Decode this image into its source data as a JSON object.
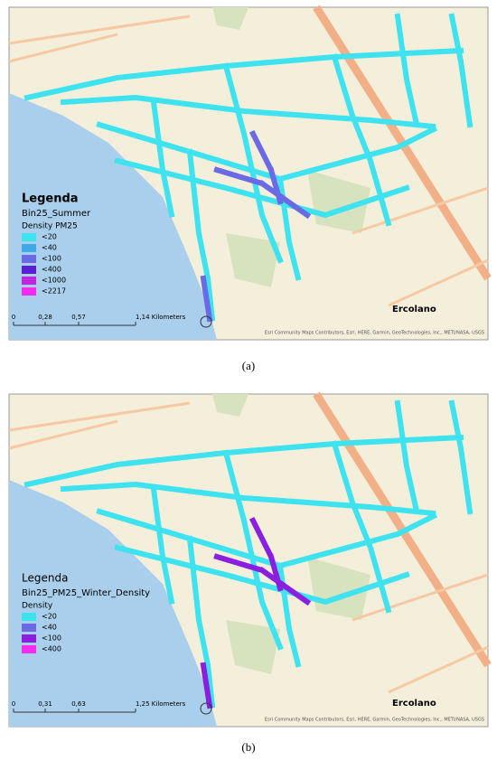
{
  "panels": [
    {
      "legend": {
        "title": "Legenda",
        "layer": "Bin25_Summer",
        "field": "Density PM25",
        "classes": [
          {
            "label": "<20",
            "color": "#3fe3ef"
          },
          {
            "label": "<40",
            "color": "#3fa9ea"
          },
          {
            "label": "<100",
            "color": "#6a6ae4"
          },
          {
            "label": "<400",
            "color": "#5a1fd0"
          },
          {
            "label": "<1000",
            "color": "#c026e0"
          },
          {
            "label": "<2217",
            "color": "#f42cf0"
          }
        ]
      },
      "scale": [
        "0",
        "0,28",
        "0,57",
        "1,14 Kilometers"
      ],
      "place": "Ercolano",
      "attribution": "Esri Community Maps Contributors, Esri, HERE, Garmin, GeoTechnologies, Inc., METI/NASA, USGS",
      "caption": "(a)"
    },
    {
      "legend": {
        "title": "Legenda",
        "layer": "Bin25_PM25_Winter_Density",
        "field": "Density",
        "classes": [
          {
            "label": "<20",
            "color": "#3fe3ef"
          },
          {
            "label": "<40",
            "color": "#6a6ae4"
          },
          {
            "label": "<100",
            "color": "#8a1fe0"
          },
          {
            "label": "<400",
            "color": "#f42cf0"
          }
        ]
      },
      "scale": [
        "0",
        "0,31",
        "0,63",
        "1,25 Kilometers"
      ],
      "place": "Ercolano",
      "attribution": "Esri Community Maps Contributors, Esri, HERE, Garmin, GeoTechnologies, Inc., METI/NASA, USGS",
      "caption": "(b)"
    }
  ]
}
